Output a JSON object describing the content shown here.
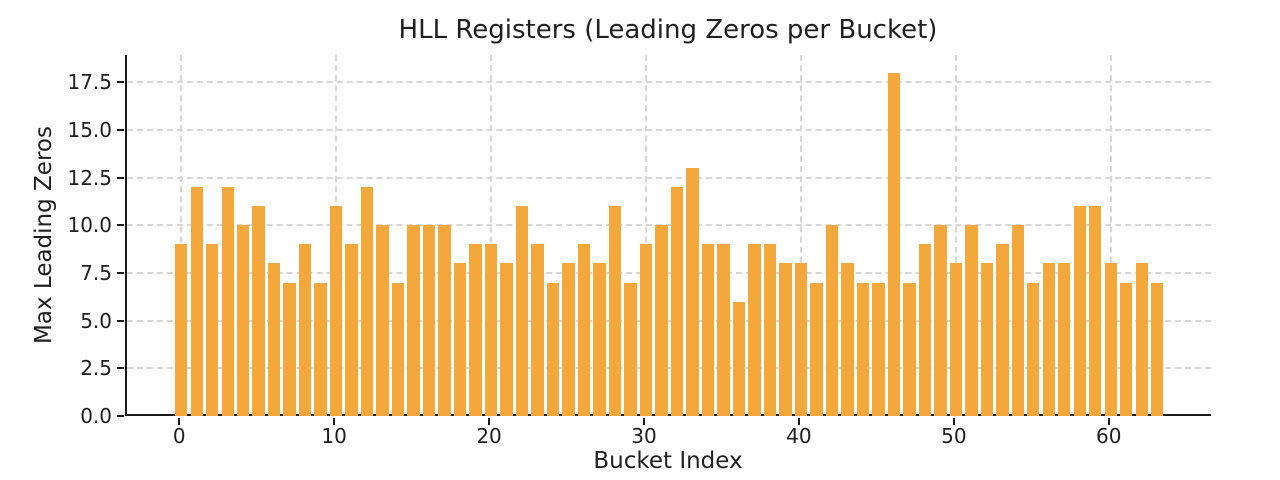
{
  "chart_data": {
    "type": "bar",
    "title": "HLL Registers (Leading Zeros per Bucket)",
    "xlabel": "Bucket Index",
    "ylabel": "Max Leading Zeros",
    "x": [
      0,
      1,
      2,
      3,
      4,
      5,
      6,
      7,
      8,
      9,
      10,
      11,
      12,
      13,
      14,
      15,
      16,
      17,
      18,
      19,
      20,
      21,
      22,
      23,
      24,
      25,
      26,
      27,
      28,
      29,
      30,
      31,
      32,
      33,
      34,
      35,
      36,
      37,
      38,
      39,
      40,
      41,
      42,
      43,
      44,
      45,
      46,
      47,
      48,
      49,
      50,
      51,
      52,
      53,
      54,
      55,
      56,
      57,
      58,
      59,
      60,
      61,
      62,
      63
    ],
    "values": [
      9,
      12,
      9,
      12,
      10,
      11,
      8,
      7,
      9,
      7,
      11,
      9,
      12,
      10,
      7,
      10,
      10,
      10,
      8,
      9,
      9,
      8,
      11,
      9,
      7,
      8,
      9,
      8,
      11,
      7,
      9,
      10,
      12,
      13,
      9,
      9,
      6,
      9,
      9,
      8,
      8,
      7,
      10,
      8,
      7,
      7,
      18,
      7,
      9,
      10,
      8,
      10,
      8,
      9,
      10,
      7,
      8,
      8,
      11,
      11,
      8,
      7,
      8,
      7
    ],
    "xticks": [
      0,
      10,
      20,
      30,
      40,
      50,
      60
    ],
    "xtick_labels": [
      "0",
      "10",
      "20",
      "30",
      "40",
      "50",
      "60"
    ],
    "yticks": [
      0,
      2.5,
      5,
      7.5,
      10,
      12.5,
      15,
      17.5
    ],
    "ytick_labels": [
      "0.0",
      "2.5",
      "5.0",
      "7.5",
      "10.0",
      "12.5",
      "15.0",
      "17.5"
    ],
    "xlim": [
      -3.5,
      66.6
    ],
    "ylim": [
      0,
      18.93
    ],
    "bar_width": 0.8,
    "bar_color": "#F4A83C",
    "grid": "dashed, both axes, below bars",
    "grid_color": "#d7d7d7",
    "spine_color": "#1a1a1a",
    "text_color": "#1f1f1f",
    "background": "#ffffff",
    "legend": "none"
  }
}
